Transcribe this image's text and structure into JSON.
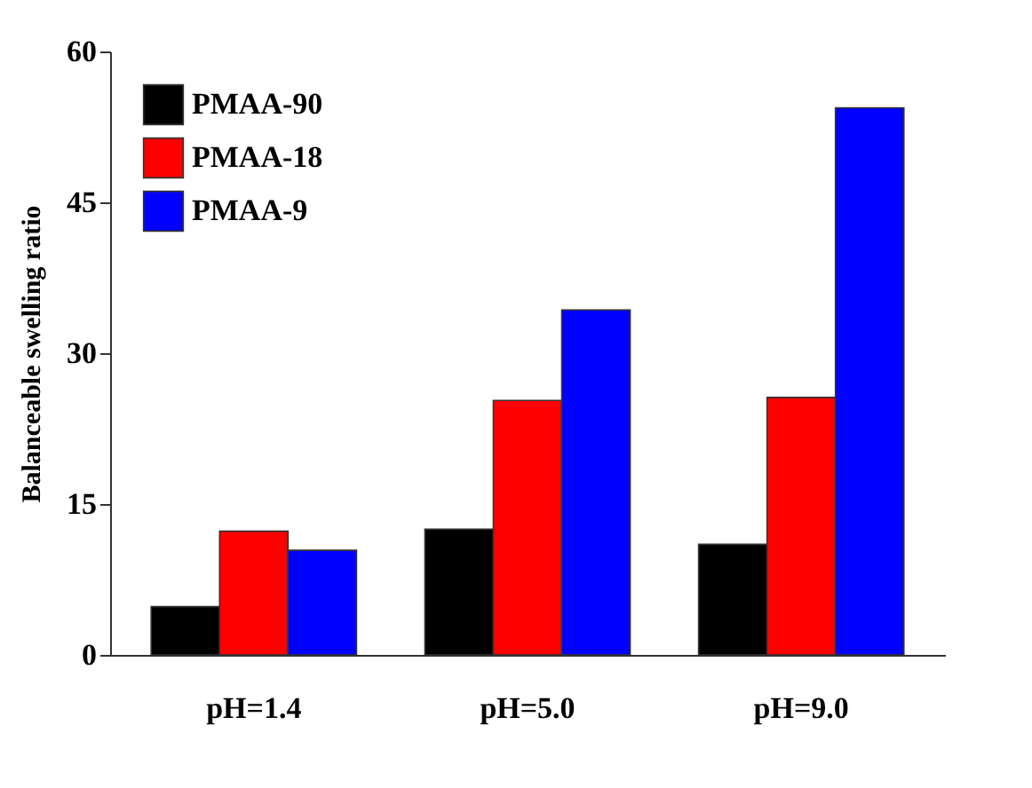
{
  "chart_data": {
    "type": "bar",
    "ylabel": "Balanceable swelling ratio",
    "categories": [
      "pH=1.4",
      "pH=5.0",
      "pH=9.0"
    ],
    "series": [
      {
        "name": "PMAA-90",
        "color": "#000000",
        "values": [
          4.8,
          12.5,
          11.0
        ]
      },
      {
        "name": "PMAA-18",
        "color": "#ff0000",
        "values": [
          12.3,
          25.3,
          25.6
        ]
      },
      {
        "name": "PMAA-9",
        "color": "#0000ff",
        "values": [
          10.4,
          34.3,
          54.4
        ]
      }
    ],
    "ylim": [
      0,
      60
    ],
    "yticks": [
      0,
      15,
      30,
      45,
      60
    ],
    "grid": false,
    "legend": "top left"
  }
}
